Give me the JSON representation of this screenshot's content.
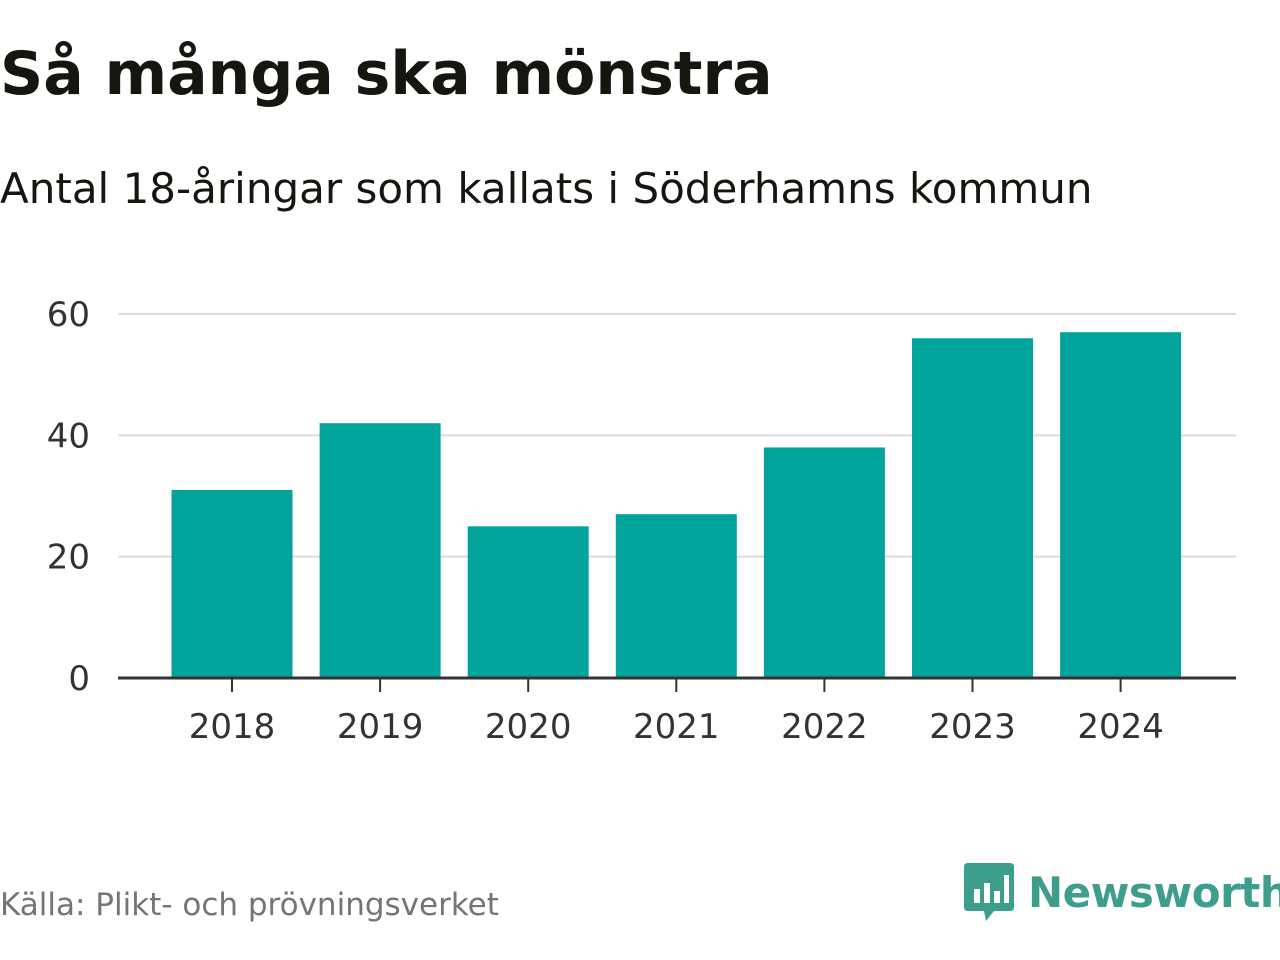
{
  "title": "Så många ska mönstra",
  "subtitle": "Antal 18-åringar som kallats i Söderhamns kommun",
  "source": "Källa: Plikt- och prövningsverket",
  "brand": {
    "name": "Newsworthy",
    "logo_icon": "bar-chart-speech-bubble-icon",
    "color": "#3d9e8c"
  },
  "chart_data": {
    "type": "bar",
    "categories": [
      "2018",
      "2019",
      "2020",
      "2021",
      "2022",
      "2023",
      "2024"
    ],
    "values": [
      31,
      42,
      25,
      27,
      38,
      56,
      57
    ],
    "ylim": [
      0,
      60
    ],
    "yticks": [
      0,
      20,
      40,
      60
    ],
    "grid": true,
    "bar_color": "#00a49a",
    "xlabel": "",
    "ylabel": ""
  }
}
